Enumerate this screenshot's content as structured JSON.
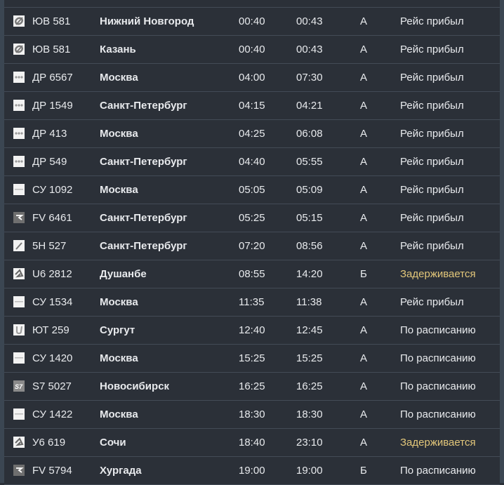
{
  "colors": {
    "background": "#2b3038",
    "text": "#e8eaed",
    "delayed": "#e3c77a",
    "divider": "#434b56"
  },
  "flights": [
    {
      "logo": "utair-swoosh-icon",
      "flight": "ЮВ 581",
      "city": "Нижний Новгород",
      "scheduled": "00:40",
      "actual": "00:43",
      "terminal": "A",
      "status": "Рейс прибыл",
      "delayed": false
    },
    {
      "logo": "utair-swoosh-icon",
      "flight": "ЮВ 581",
      "city": "Казань",
      "scheduled": "00:40",
      "actual": "00:43",
      "terminal": "A",
      "status": "Рейс прибыл",
      "delayed": false
    },
    {
      "logo": "dots-icon",
      "flight": "ДР 6567",
      "city": "Москва",
      "scheduled": "04:00",
      "actual": "07:30",
      "terminal": "A",
      "status": "Рейс прибыл",
      "delayed": false
    },
    {
      "logo": "dots-icon",
      "flight": "ДР 1549",
      "city": "Санкт-Петербург",
      "scheduled": "04:15",
      "actual": "04:21",
      "terminal": "A",
      "status": "Рейс прибыл",
      "delayed": false
    },
    {
      "logo": "dots-icon",
      "flight": "ДР 413",
      "city": "Москва",
      "scheduled": "04:25",
      "actual": "06:08",
      "terminal": "A",
      "status": "Рейс прибыл",
      "delayed": false
    },
    {
      "logo": "dots-icon",
      "flight": "ДР 549",
      "city": "Санкт-Петербург",
      "scheduled": "04:40",
      "actual": "05:55",
      "terminal": "A",
      "status": "Рейс прибыл",
      "delayed": false
    },
    {
      "logo": "dash-icon",
      "flight": "СУ 1092",
      "city": "Москва",
      "scheduled": "05:05",
      "actual": "05:09",
      "terminal": "A",
      "status": "Рейс прибыл",
      "delayed": false
    },
    {
      "logo": "rossiya-icon",
      "flight": "FV 6461",
      "city": "Санкт-Петербург",
      "scheduled": "05:25",
      "actual": "05:15",
      "terminal": "A",
      "status": "Рейс прибыл",
      "delayed": false
    },
    {
      "logo": "plane-streak-icon",
      "flight": "5Н 527",
      "city": "Санкт-Петербург",
      "scheduled": "07:20",
      "actual": "08:56",
      "terminal": "A",
      "status": "Рейс прибыл",
      "delayed": false
    },
    {
      "logo": "ural-bird-icon",
      "flight": "U6 2812",
      "city": "Душанбе",
      "scheduled": "08:55",
      "actual": "14:20",
      "terminal": "Б",
      "status": "Задерживается",
      "delayed": true
    },
    {
      "logo": "dash-icon",
      "flight": "СУ 1534",
      "city": "Москва",
      "scheduled": "11:35",
      "actual": "11:38",
      "terminal": "A",
      "status": "Рейс прибыл",
      "delayed": false
    },
    {
      "logo": "u-letter-icon",
      "flight": "ЮТ 259",
      "city": "Сургут",
      "scheduled": "12:40",
      "actual": "12:45",
      "terminal": "A",
      "status": "По расписанию",
      "delayed": false
    },
    {
      "logo": "dash-icon",
      "flight": "СУ 1420",
      "city": "Москва",
      "scheduled": "15:25",
      "actual": "15:25",
      "terminal": "A",
      "status": "По расписанию",
      "delayed": false
    },
    {
      "logo": "s7-icon",
      "flight": "S7 5027",
      "city": "Новосибирск",
      "scheduled": "16:25",
      "actual": "16:25",
      "terminal": "A",
      "status": "По расписанию",
      "delayed": false
    },
    {
      "logo": "dash-icon",
      "flight": "СУ 1422",
      "city": "Москва",
      "scheduled": "18:30",
      "actual": "18:30",
      "terminal": "A",
      "status": "По расписанию",
      "delayed": false
    },
    {
      "logo": "ural-bird-icon",
      "flight": "У6 619",
      "city": "Сочи",
      "scheduled": "18:40",
      "actual": "23:10",
      "terminal": "A",
      "status": "Задерживается",
      "delayed": true
    },
    {
      "logo": "rossiya-icon",
      "flight": "FV 5794",
      "city": "Хургада",
      "scheduled": "19:00",
      "actual": "19:00",
      "terminal": "Б",
      "status": "По расписанию",
      "delayed": false
    }
  ]
}
